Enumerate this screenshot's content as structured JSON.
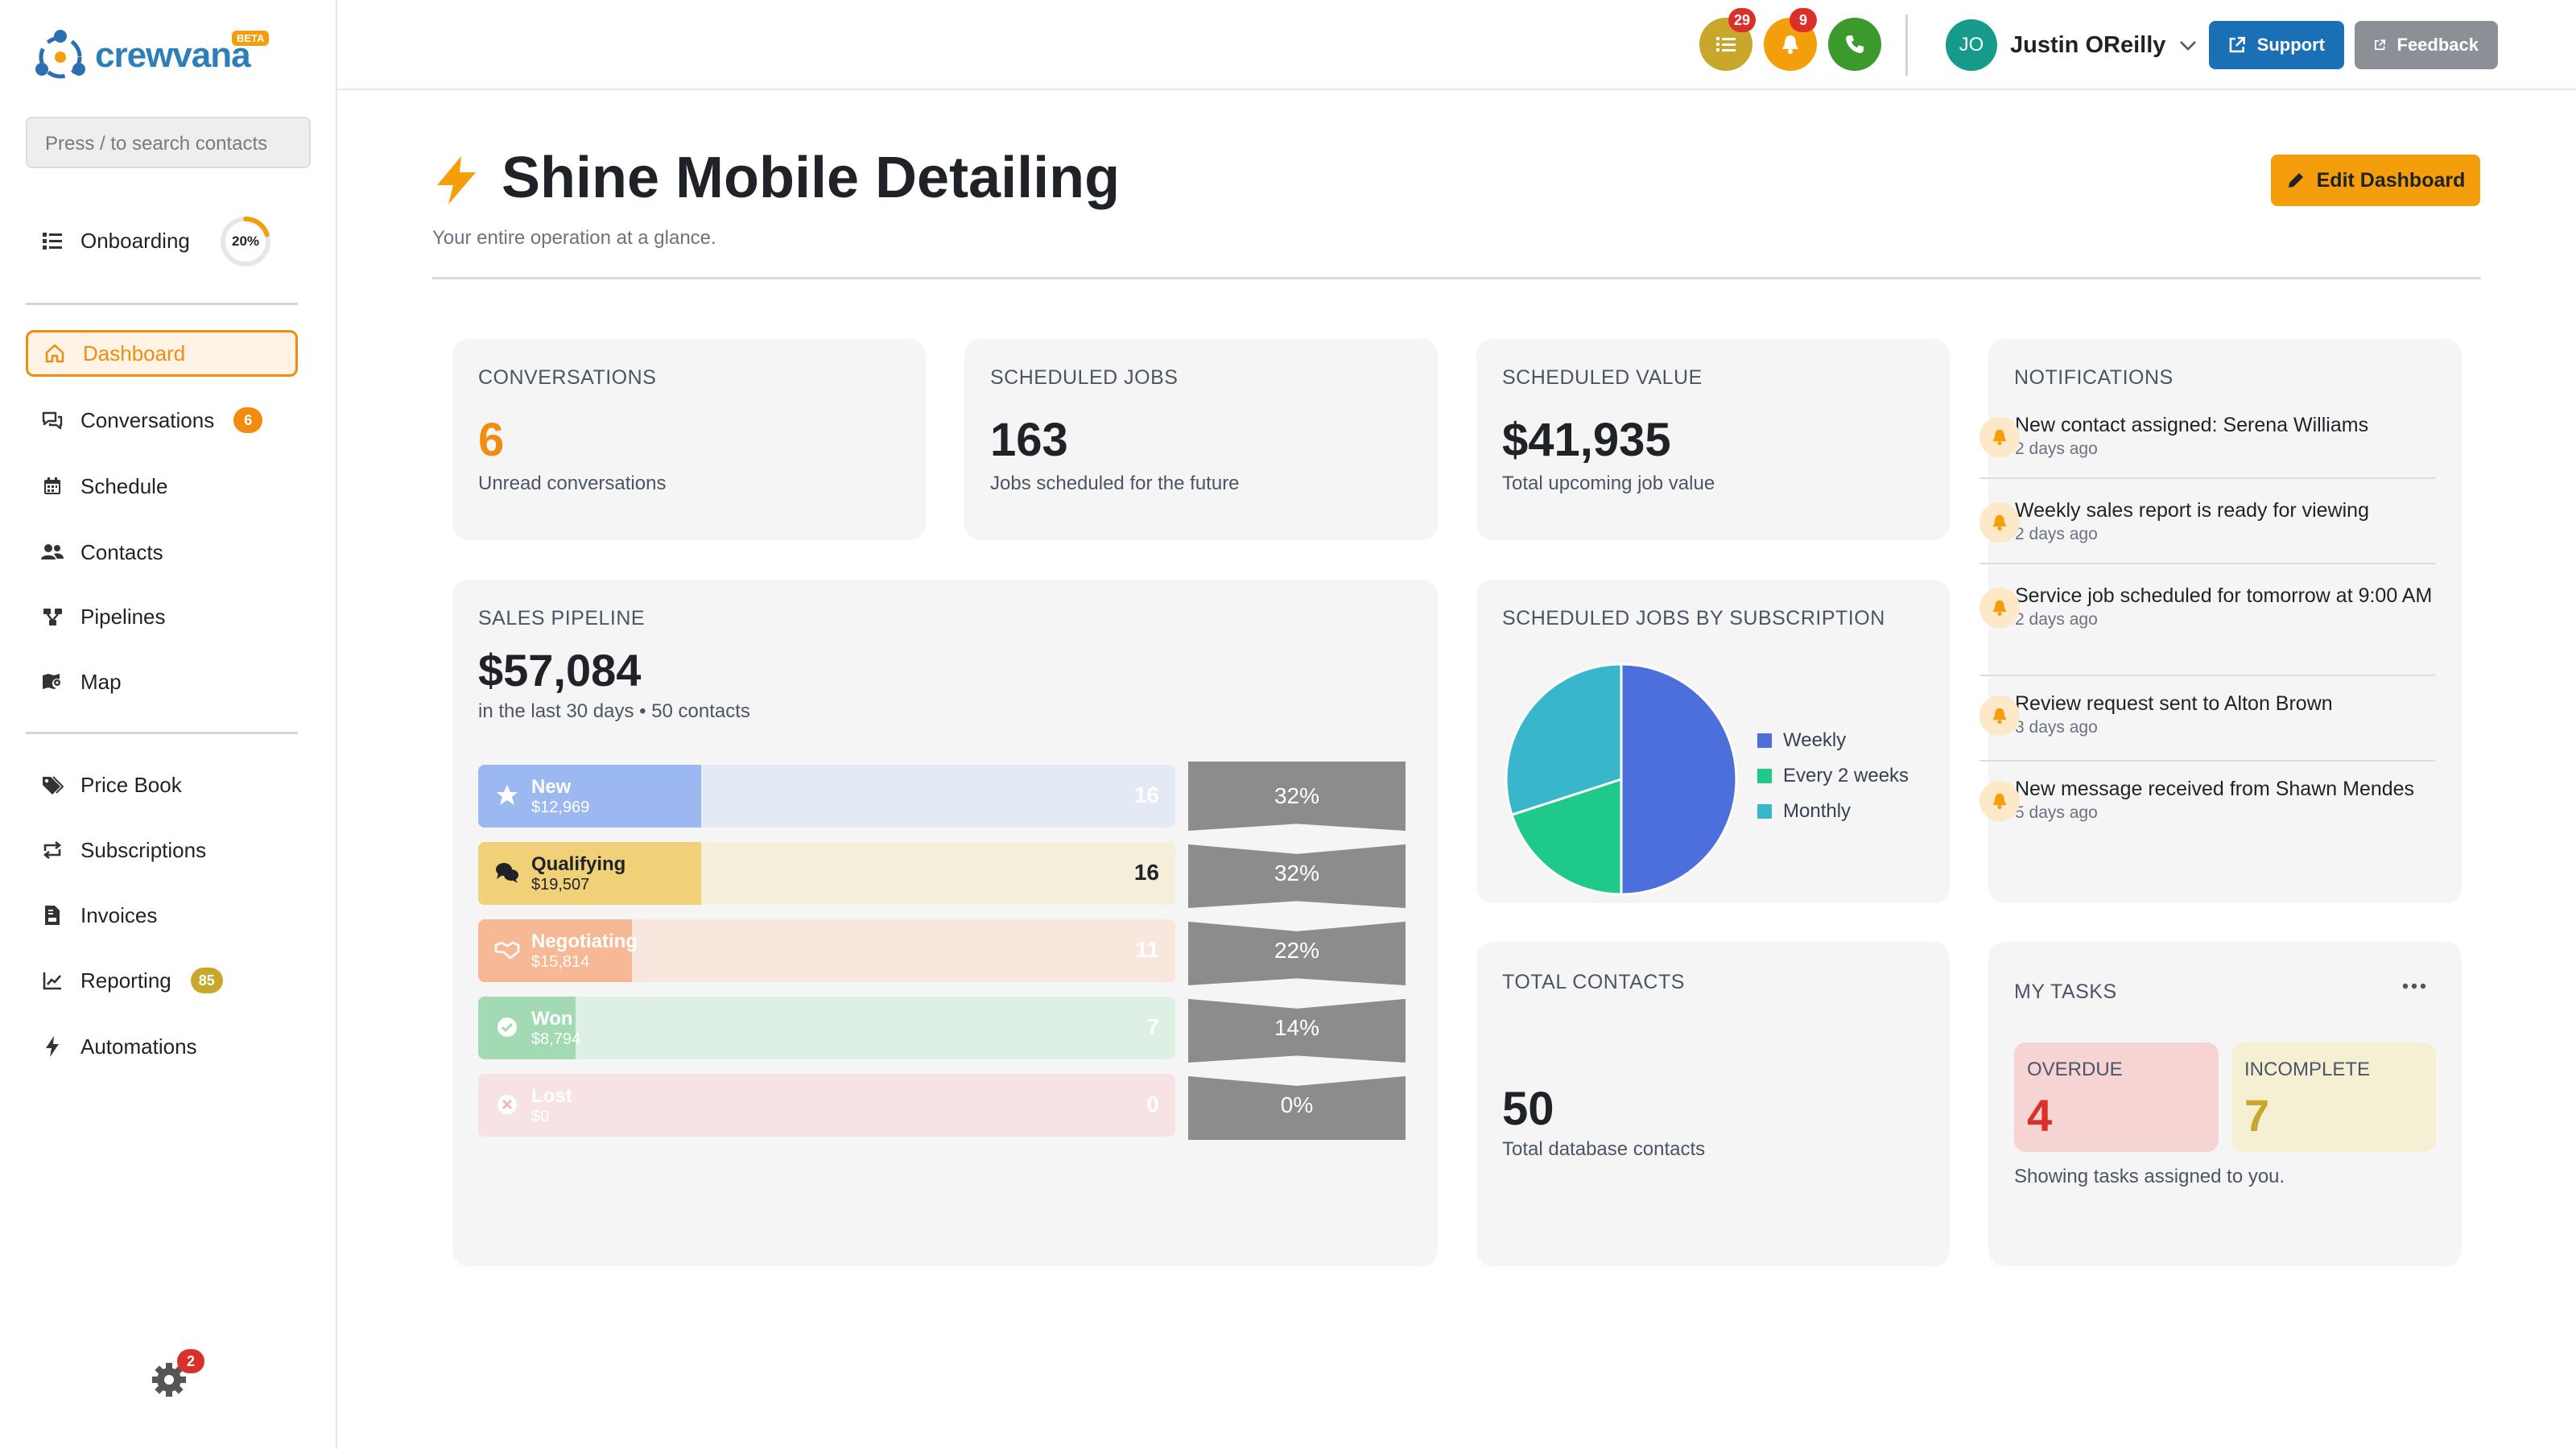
{
  "brand": {
    "name": "crewvana",
    "beta": "BETA"
  },
  "search": {
    "placeholder": "Press / to search contacts"
  },
  "onboarding": {
    "label": "Onboarding",
    "progress_text": "20%",
    "progress": 0.2
  },
  "nav": {
    "main": [
      {
        "label": "Dashboard",
        "icon": "home-icon",
        "active": true
      },
      {
        "label": "Conversations",
        "icon": "chat-icon",
        "badge": "6"
      },
      {
        "label": "Schedule",
        "icon": "calendar-icon"
      },
      {
        "label": "Contacts",
        "icon": "users-icon"
      },
      {
        "label": "Pipelines",
        "icon": "pipeline-icon"
      },
      {
        "label": "Map",
        "icon": "map-icon"
      }
    ],
    "secondary": [
      {
        "label": "Price Book",
        "icon": "tags-icon"
      },
      {
        "label": "Subscriptions",
        "icon": "repeat-icon"
      },
      {
        "label": "Invoices",
        "icon": "invoice-icon"
      },
      {
        "label": "Reporting",
        "icon": "chart-line-icon",
        "badge": "85"
      },
      {
        "label": "Automations",
        "icon": "bolt-icon"
      }
    ]
  },
  "settings": {
    "badge": "2"
  },
  "header": {
    "tasks_badge": "29",
    "notifications_badge": "9",
    "user": {
      "initials": "JO",
      "name": "Justin OReilly"
    },
    "support_label": "Support",
    "feedback_label": "Feedback"
  },
  "page": {
    "title": "Shine Mobile Detailing",
    "subtitle": "Your entire operation at a glance.",
    "edit_label": "Edit Dashboard"
  },
  "stats": {
    "conversations": {
      "label": "CONVERSATIONS",
      "value": "6",
      "sub": "Unread conversations"
    },
    "scheduled_jobs": {
      "label": "SCHEDULED JOBS",
      "value": "163",
      "sub": "Jobs scheduled for the future"
    },
    "scheduled_value": {
      "label": "SCHEDULED VALUE",
      "value": "$41,935",
      "sub": "Total upcoming job value"
    }
  },
  "pipeline": {
    "label": "SALES PIPELINE",
    "total": "$57,084",
    "sub": "in the last 30 days • 50 contacts",
    "stages": [
      {
        "name": "New",
        "value": "$12,969",
        "count": "16",
        "pct": "32%",
        "fill": 0.32,
        "color": "#9bb8f0",
        "bg": "#e3e9f5",
        "icon": "star-icon"
      },
      {
        "name": "Qualifying",
        "value": "$19,507",
        "count": "16",
        "pct": "32%",
        "fill": 0.32,
        "color": "#f0d178",
        "bg": "#f5eed9",
        "icon": "comments-icon"
      },
      {
        "name": "Negotiating",
        "value": "$15,814",
        "count": "11",
        "pct": "22%",
        "fill": 0.22,
        "color": "#f7b995",
        "bg": "#f7e7dc",
        "icon": "handshake-icon"
      },
      {
        "name": "Won",
        "value": "$8,794",
        "count": "7",
        "pct": "14%",
        "fill": 0.14,
        "color": "#a3dab3",
        "bg": "#deefe3",
        "icon": "check-circle-icon"
      },
      {
        "name": "Lost",
        "value": "$0",
        "count": "0",
        "pct": "0%",
        "fill": 0,
        "color": "#f1b8b8",
        "bg": "#f7e3e3",
        "icon": "x-circle-icon"
      }
    ]
  },
  "subscriptions_chart": {
    "label": "SCHEDULED JOBS BY SUBSCRIPTION",
    "legend": [
      "Weekly",
      "Every 2 weeks",
      "Monthly"
    ],
    "colors": [
      "#4d6fdc",
      "#1ec98a",
      "#38b6cc"
    ]
  },
  "chart_data": {
    "type": "pie",
    "categories": [
      "Weekly",
      "Every 2 weeks",
      "Monthly"
    ],
    "values": [
      50,
      20,
      30
    ],
    "title": "SCHEDULED JOBS BY SUBSCRIPTION"
  },
  "total_contacts": {
    "label": "TOTAL CONTACTS",
    "value": "50",
    "sub": "Total database contacts"
  },
  "notifications": {
    "label": "NOTIFICATIONS",
    "items": [
      {
        "text": "New contact assigned: Serena Williams",
        "time": "2 days ago"
      },
      {
        "text": "Weekly sales report is ready for viewing",
        "time": "2 days ago"
      },
      {
        "text": "Service job scheduled for tomorrow at 9:00 AM",
        "time": "2 days ago"
      },
      {
        "text": "Review request sent to Alton Brown",
        "time": "3 days ago"
      },
      {
        "text": "New message received from Shawn Mendes",
        "time": "5 days ago"
      }
    ]
  },
  "tasks": {
    "label": "MY TASKS",
    "overdue_label": "OVERDUE",
    "overdue": "4",
    "incomplete_label": "INCOMPLETE",
    "incomplete": "7",
    "footer": "Showing tasks assigned to you."
  }
}
